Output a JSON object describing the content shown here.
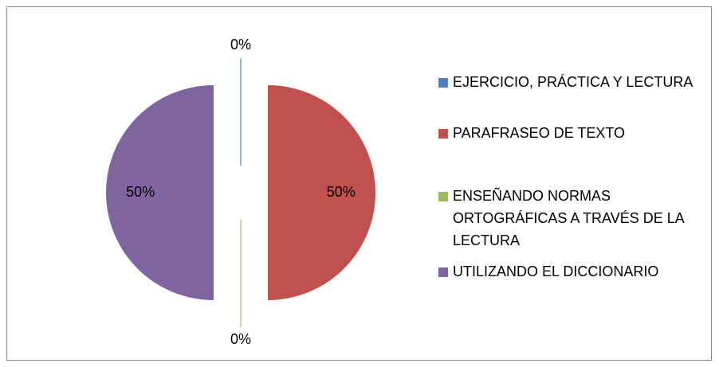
{
  "chart_data": {
    "type": "pie",
    "categories": [
      "EJERCICIO, PRÁCTICA Y LECTURA",
      "PARAFRASEO DE TEXTO",
      "ENSEÑANDO NORMAS ORTOGRÁFICAS A TRAVÉS DE LA LECTURA",
      "UTILIZANDO EL DICCIONARIO"
    ],
    "values": [
      0,
      50,
      0,
      50
    ],
    "value_labels": [
      "0%",
      "50%",
      "0%",
      "50%"
    ],
    "colors": [
      "#4f81bd",
      "#c0504d",
      "#9bbb59",
      "#8064a2"
    ],
    "legend": "right"
  }
}
